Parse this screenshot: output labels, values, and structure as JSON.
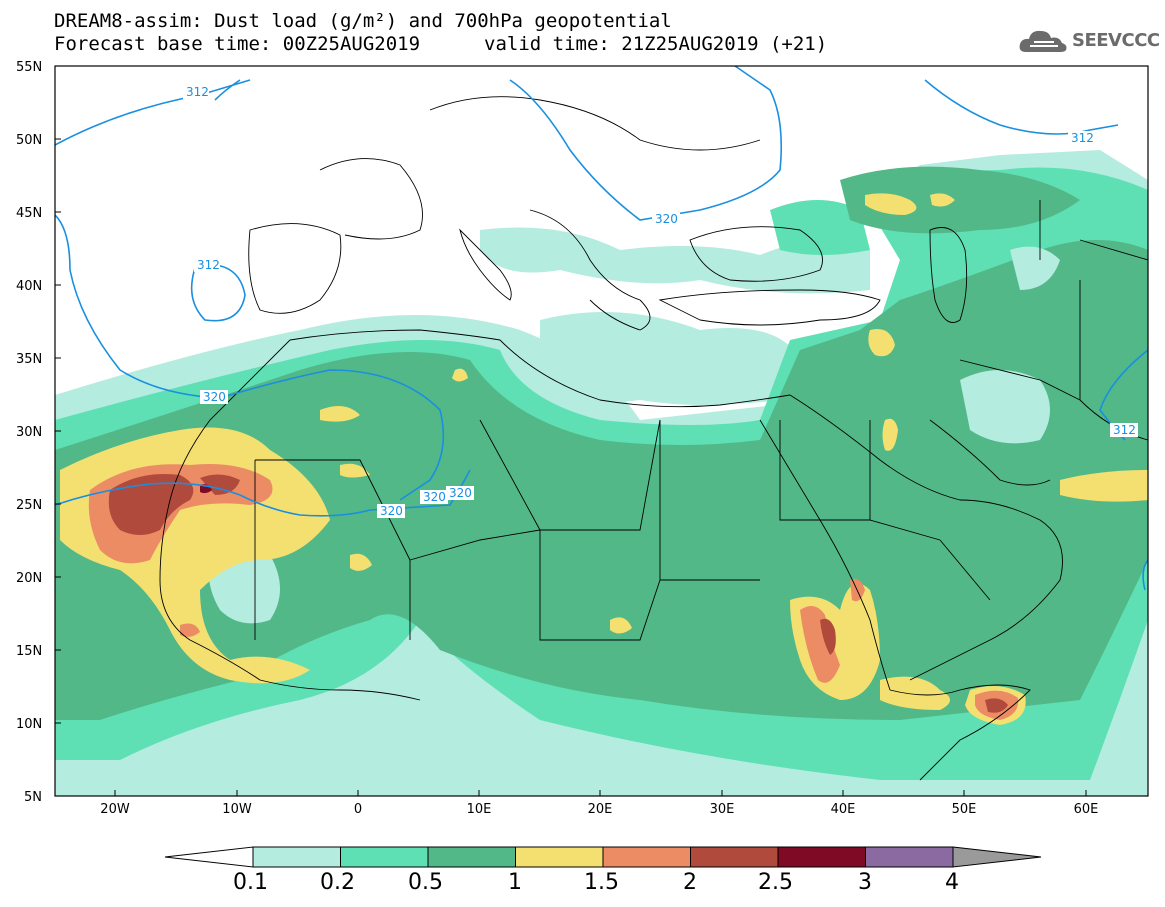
{
  "title": {
    "line1": "DREAM8-assim: Dust load (g/m²) and 700hPa geopotential",
    "line2": "Forecast base time: 00Z25AUG2019",
    "valid": "valid time: 21Z25AUG2019 (+21)"
  },
  "logo": {
    "text": "SEEVCCC",
    "icon": "cloud-icon"
  },
  "axes": {
    "lat_labels": [
      "55N",
      "50N",
      "45N",
      "40N",
      "35N",
      "30N",
      "25N",
      "20N",
      "15N",
      "10N",
      "5N"
    ],
    "lon_labels": [
      "20W",
      "10W",
      "0",
      "10E",
      "20E",
      "30E",
      "40E",
      "50E",
      "60E"
    ]
  },
  "contours": {
    "labels": [
      "312",
      "312",
      "312",
      "312",
      "320",
      "320",
      "320",
      "320",
      "320",
      "312"
    ],
    "color": "#1a8fe0"
  },
  "colorbar": {
    "levels": [
      "0.1",
      "0.2",
      "0.5",
      "1",
      "1.5",
      "2",
      "2.5",
      "3",
      "4"
    ],
    "colors": [
      "#b4ecdf",
      "#5ee0b4",
      "#52b888",
      "#f4e071",
      "#ec8c64",
      "#b04a3c",
      "#7e0a26",
      "#8a6aa0"
    ],
    "under_color": "#ffffff",
    "over_color": "#9a9a9a"
  },
  "map": {
    "land_bg": "#ffffff",
    "border_color": "#000000"
  }
}
